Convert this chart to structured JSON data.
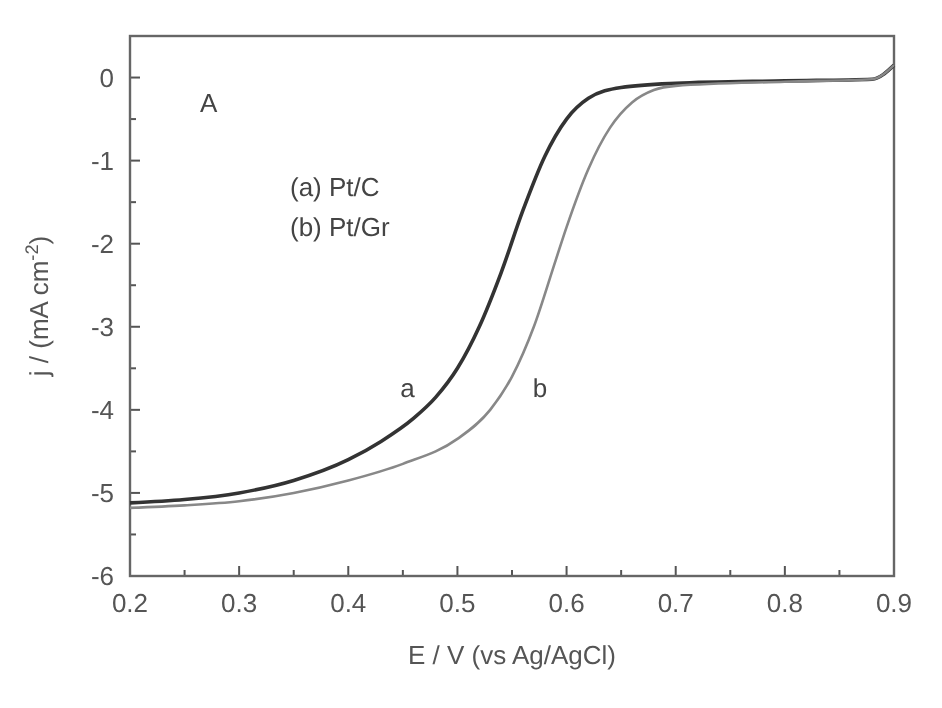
{
  "chart_data": {
    "type": "line",
    "xlabel": "E / V (vs Ag/AgCl)",
    "ylabel": "j / (mA cm$^{-2}$)",
    "annotations": [
      "A",
      "(a) Pt/C",
      "(b) Pt/Gr"
    ],
    "xlim": [
      0.2,
      0.9
    ],
    "ylim": [
      -6,
      0.5
    ],
    "xticks": [
      0.2,
      {
        "value": 0.25,
        "label": null
      },
      0.3,
      {
        "value": 0.35,
        "label": null
      },
      0.4,
      {
        "value": 0.45,
        "label": null
      },
      0.5,
      {
        "value": 0.55,
        "label": null
      },
      0.6,
      {
        "value": 0.65,
        "label": null
      },
      0.7,
      {
        "value": 0.75,
        "label": null
      },
      0.8,
      {
        "value": 0.85,
        "label": null
      },
      0.9
    ],
    "yticks": [
      -6,
      {
        "value": -5.5,
        "label": null
      },
      -5,
      {
        "value": -4.5,
        "label": null
      },
      -4,
      {
        "value": -3.5,
        "label": null
      },
      -3,
      {
        "value": -2.5,
        "label": null
      },
      -2,
      {
        "value": -1.5,
        "label": null
      },
      -1,
      {
        "value": -0.5,
        "label": null
      },
      0
    ],
    "grid": false,
    "marker": "none",
    "line_style": "solid",
    "series": [
      {
        "name": "a",
        "color": "#333333",
        "x": [
          0.2,
          0.25,
          0.3,
          0.35,
          0.4,
          0.43,
          0.46,
          0.48,
          0.5,
          0.52,
          0.54,
          0.56,
          0.58,
          0.6,
          0.62,
          0.65,
          0.7,
          0.8,
          0.88,
          0.9
        ],
        "values": [
          -5.12,
          -5.08,
          -5.0,
          -4.85,
          -4.6,
          -4.38,
          -4.1,
          -3.85,
          -3.5,
          -3.0,
          -2.35,
          -1.6,
          -0.95,
          -0.5,
          -0.25,
          -0.12,
          -0.07,
          -0.04,
          -0.02,
          0.15
        ]
      },
      {
        "name": "b",
        "color": "#888888",
        "x": [
          0.2,
          0.25,
          0.3,
          0.35,
          0.4,
          0.45,
          0.5,
          0.53,
          0.55,
          0.57,
          0.59,
          0.6,
          0.62,
          0.64,
          0.66,
          0.68,
          0.7,
          0.8,
          0.88,
          0.9
        ],
        "values": [
          -5.18,
          -5.15,
          -5.1,
          -5.0,
          -4.85,
          -4.65,
          -4.35,
          -4.0,
          -3.6,
          -3.0,
          -2.2,
          -1.8,
          -1.1,
          -0.6,
          -0.3,
          -0.15,
          -0.1,
          -0.05,
          -0.02,
          0.15
        ]
      }
    ]
  }
}
